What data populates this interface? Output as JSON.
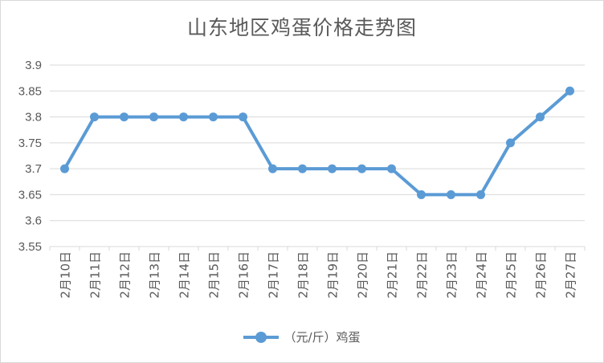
{
  "colors": {
    "series": "#5b9bd5",
    "grid": "#d9d9d9",
    "text": "#595959"
  },
  "chart_data": {
    "type": "line",
    "title": "山东地区鸡蛋价格走势图",
    "xlabel": "",
    "ylabel": "",
    "categories": [
      "2月10日",
      "2月11日",
      "2月12日",
      "2月13日",
      "2月14日",
      "2月15日",
      "2月16日",
      "2月17日",
      "2月18日",
      "2月19日",
      "2月20日",
      "2月21日",
      "2月22日",
      "2月23日",
      "2月24日",
      "2月25日",
      "2月26日",
      "2月27日"
    ],
    "series": [
      {
        "name": "（元/斤）鸡蛋",
        "values": [
          3.7,
          3.8,
          3.8,
          3.8,
          3.8,
          3.8,
          3.8,
          3.7,
          3.7,
          3.7,
          3.7,
          3.7,
          3.65,
          3.65,
          3.65,
          3.75,
          3.8,
          3.85
        ]
      }
    ],
    "ylim": [
      3.55,
      3.9
    ],
    "yticks": [
      "3.9",
      "3.85",
      "3.8",
      "3.75",
      "3.7",
      "3.65",
      "3.6",
      "3.55"
    ],
    "grid": true,
    "legend": "bottom"
  }
}
